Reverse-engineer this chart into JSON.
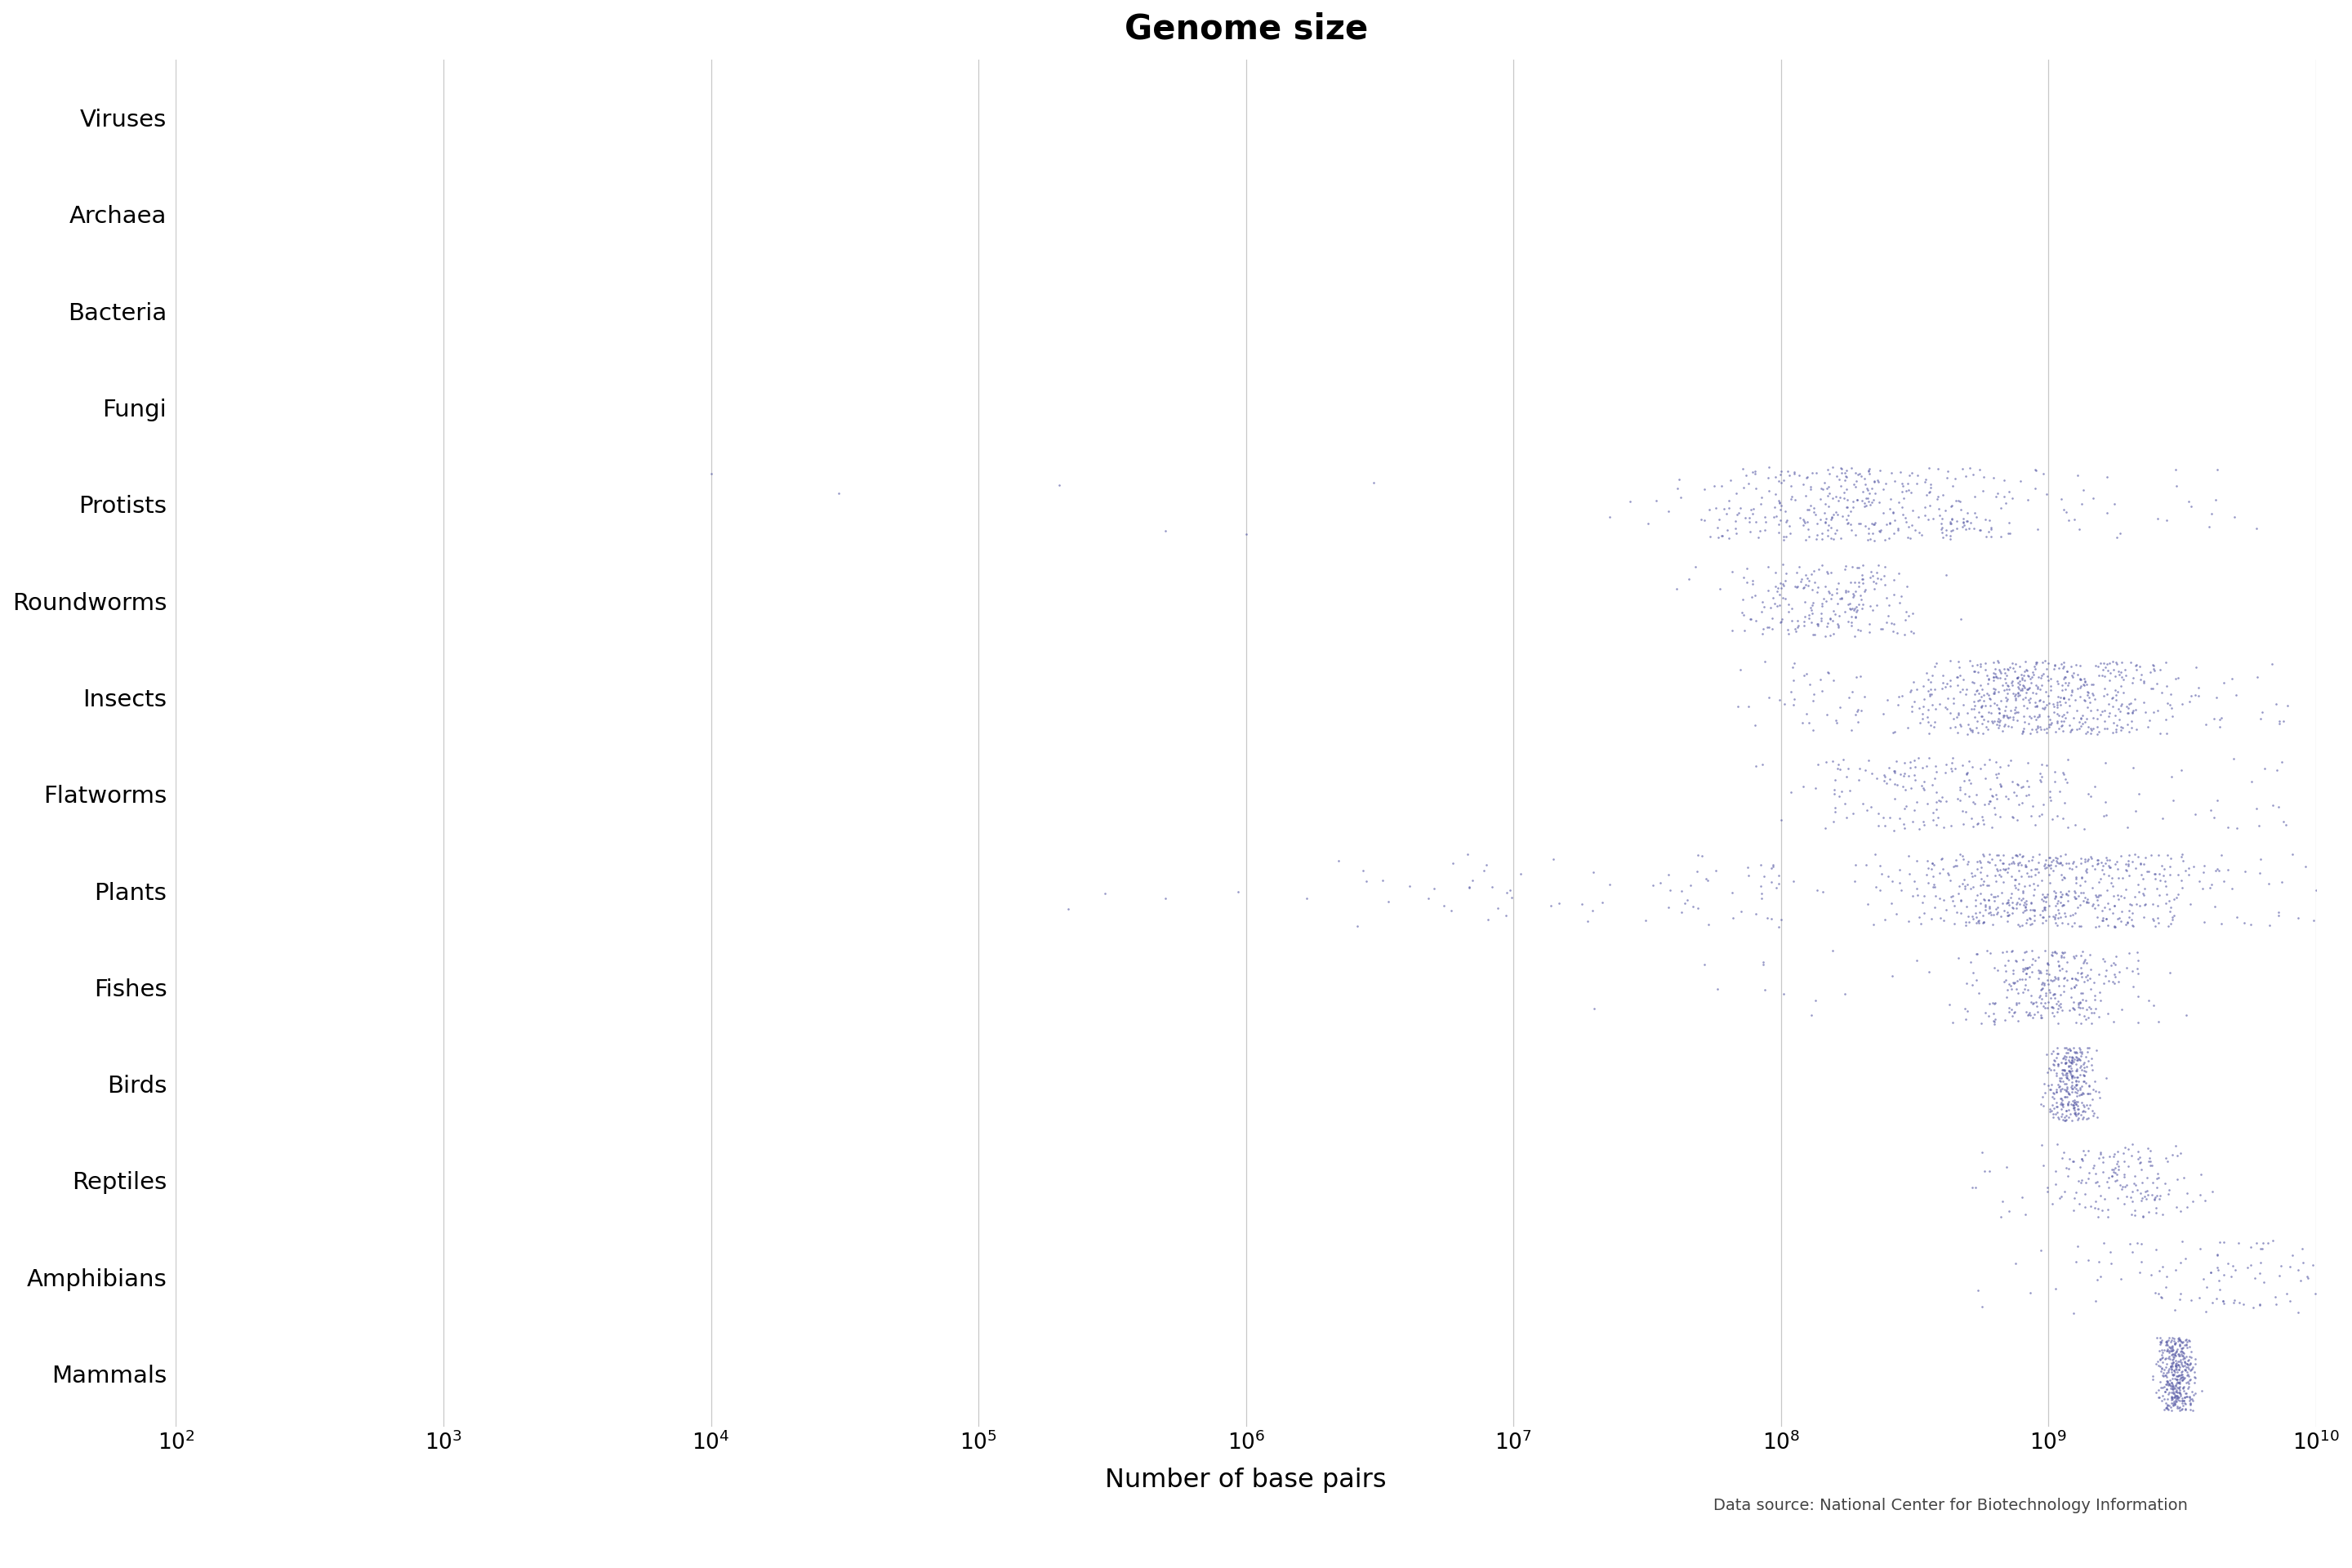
{
  "title": "Genome size",
  "xlabel": "Number of base pairs",
  "source": "Data source: National Center for Biotechnology Information",
  "categories": [
    "Viruses",
    "Archaea",
    "Bacteria",
    "Fungi",
    "Protists",
    "Roundworms",
    "Insects",
    "Flatworms",
    "Plants",
    "Fishes",
    "Birds",
    "Reptiles",
    "Amphibians",
    "Mammals"
  ],
  "colors": {
    "Viruses": "#e8007f",
    "Archaea": "#2a8c6e",
    "Bacteria": "#c94c00",
    "Fungi": "#5c5fa8",
    "Protists": "#5c5fa8",
    "Roundworms": "#5c5fa8",
    "Insects": "#5c5fa8",
    "Flatworms": "#5c5fa8",
    "Plants": "#5c5fa8",
    "Fishes": "#5c5fa8",
    "Birds": "#5c5fa8",
    "Reptiles": "#5c5fa8",
    "Amphibians": "#5c5fa8",
    "Mammals": "#5c5fa8"
  },
  "xmin": 2,
  "xmax": 10,
  "background": "#ffffff",
  "grid_color": "#bbbbbb",
  "violin_cats": [
    "Viruses",
    "Archaea",
    "Bacteria",
    "Fungi"
  ],
  "scatter_cats": [
    "Protists",
    "Roundworms",
    "Insects",
    "Flatworms",
    "Plants",
    "Fishes",
    "Birds",
    "Reptiles",
    "Amphibians",
    "Mammals"
  ]
}
